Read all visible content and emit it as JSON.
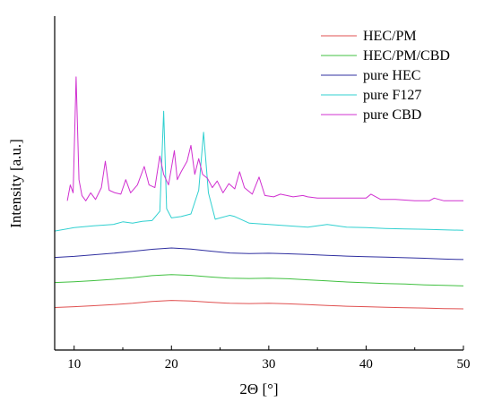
{
  "chart_data": {
    "type": "line",
    "xlabel": "2Θ [°]",
    "ylabel": "Intensity [a.u.]",
    "xlim": [
      8,
      50
    ],
    "y_ticks_shown": false,
    "x_ticks": [
      "10",
      "20",
      "30",
      "40",
      "50"
    ],
    "legend_position": "top-right",
    "grid": false,
    "series": [
      {
        "name": "HEC/PM",
        "color": "#e05050",
        "x": [
          8,
          10,
          12,
          14,
          16,
          18,
          20,
          22,
          24,
          26,
          28,
          30,
          32,
          34,
          36,
          38,
          40,
          42,
          44,
          46,
          48,
          50
        ],
        "values": [
          0.5,
          0.8,
          1.2,
          1.6,
          2.1,
          2.8,
          3.2,
          3.0,
          2.5,
          2.1,
          2.0,
          2.1,
          1.9,
          1.6,
          1.3,
          1.0,
          0.8,
          0.6,
          0.4,
          0.3,
          0.1,
          0.0
        ]
      },
      {
        "name": "HEC/PM/CBD",
        "color": "#40c040",
        "x": [
          8,
          10,
          12,
          14,
          16,
          18,
          20,
          22,
          24,
          26,
          28,
          30,
          32,
          34,
          36,
          38,
          40,
          42,
          44,
          46,
          48,
          50
        ],
        "values": [
          10.0,
          10.3,
          10.7,
          11.2,
          11.8,
          12.6,
          13.0,
          12.7,
          12.1,
          11.6,
          11.5,
          11.6,
          11.4,
          11.0,
          10.6,
          10.2,
          9.9,
          9.6,
          9.4,
          9.1,
          8.9,
          8.7
        ]
      },
      {
        "name": "pure HEC",
        "color": "#3030a0",
        "x": [
          8,
          10,
          12,
          14,
          16,
          18,
          20,
          22,
          24,
          26,
          28,
          30,
          32,
          34,
          36,
          38,
          40,
          42,
          44,
          46,
          48,
          50
        ],
        "values": [
          19.5,
          19.9,
          20.5,
          21.1,
          21.8,
          22.6,
          23.1,
          22.7,
          21.9,
          21.2,
          21.0,
          21.1,
          20.9,
          20.6,
          20.3,
          20.0,
          19.8,
          19.6,
          19.4,
          19.2,
          18.9,
          18.7
        ]
      },
      {
        "name": "pure F127",
        "color": "#30d0d0",
        "x": [
          8,
          10,
          12,
          14,
          15,
          16,
          17,
          18,
          18.8,
          19.2,
          19.5,
          20,
          21,
          22,
          22.8,
          23.3,
          23.8,
          24.5,
          26,
          26.5,
          28,
          30,
          32,
          34,
          36,
          37,
          38,
          40,
          42,
          44,
          46,
          48,
          50
        ],
        "values": [
          29.5,
          30.8,
          31.5,
          32.0,
          33.0,
          32.5,
          33.2,
          33.5,
          37.0,
          75.0,
          38.0,
          34.5,
          35.0,
          36.0,
          45.0,
          67.0,
          44.0,
          34.0,
          35.5,
          35.0,
          32.5,
          32.0,
          31.5,
          31.0,
          32.0,
          31.5,
          31.0,
          30.8,
          30.5,
          30.3,
          30.2,
          30.0,
          29.8
        ]
      },
      {
        "name": "pure CBD",
        "color": "#d030d0",
        "x": [
          9.3,
          9.6,
          9.9,
          10.2,
          10.5,
          10.8,
          11.2,
          11.7,
          12.2,
          12.8,
          13.2,
          13.6,
          14.2,
          14.8,
          15.3,
          15.8,
          16.5,
          17.2,
          17.7,
          18.3,
          18.8,
          19.2,
          19.7,
          20.3,
          20.6,
          21.0,
          21.6,
          22.0,
          22.4,
          22.8,
          23.2,
          23.7,
          24.2,
          24.7,
          25.3,
          25.9,
          26.5,
          27.0,
          27.5,
          28.3,
          29.0,
          29.6,
          30.5,
          31.2,
          32.5,
          33.5,
          34.0,
          35.0,
          36.5,
          38.0,
          40.0,
          40.5,
          41.5,
          43.0,
          45.0,
          46.5,
          47.0,
          48.0,
          50.0
        ],
        "values": [
          41.0,
          47.0,
          44.0,
          88.0,
          49.0,
          43.0,
          41.0,
          44.0,
          41.5,
          46.0,
          56.0,
          45.0,
          44.0,
          43.5,
          49.0,
          44.0,
          47.0,
          54.0,
          47.0,
          46.0,
          58.0,
          51.0,
          47.0,
          60.0,
          49.0,
          52.0,
          56.0,
          62.0,
          51.0,
          57.0,
          51.0,
          49.5,
          46.0,
          48.5,
          44.0,
          47.5,
          45.5,
          52.0,
          46.0,
          43.5,
          50.0,
          43.0,
          42.5,
          43.5,
          42.5,
          43.0,
          42.5,
          42.0,
          42.0,
          42.0,
          42.0,
          43.5,
          41.5,
          41.5,
          41.0,
          41.0,
          42.0,
          41.0,
          41.0
        ]
      }
    ]
  }
}
